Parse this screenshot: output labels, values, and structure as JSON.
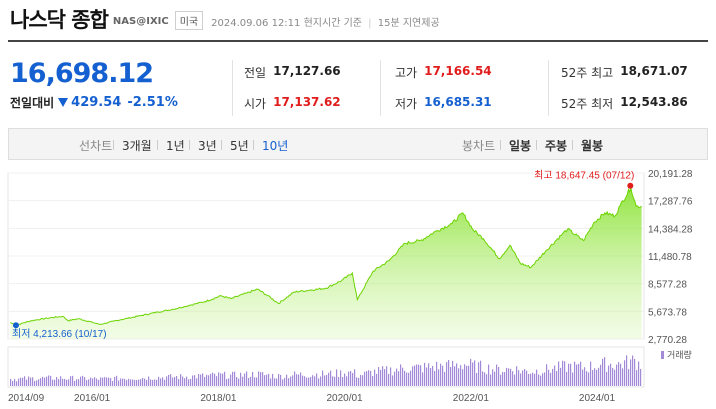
{
  "header": {
    "title": "나스닥 종합",
    "code": "NAS@IXIC",
    "market": "미국",
    "datetime": "2024.09.06 12:11",
    "time_note": "현지시간 기준",
    "delay_note": "15분 지연제공"
  },
  "quote": {
    "price": "16,698.12",
    "change_label": "전일대비",
    "change": "429.54",
    "change_pct": "-2.51%",
    "direction": "down"
  },
  "stats": {
    "prev_close": {
      "label": "전일",
      "value": "17,127.66"
    },
    "open": {
      "label": "시가",
      "value": "17,137.62"
    },
    "high": {
      "label": "고가",
      "value": "17,166.54"
    },
    "low": {
      "label": "저가",
      "value": "16,685.31"
    },
    "w52_high": {
      "label": "52주 최고",
      "value": "18,671.07"
    },
    "w52_low": {
      "label": "52주 최저",
      "value": "12,543.86"
    }
  },
  "tabs": {
    "line_chart": "선차트",
    "m3": "3개월",
    "y1": "1년",
    "y3": "3년",
    "y5": "5년",
    "y10": "10년",
    "candle_chart": "봉차트",
    "daily": "일봉",
    "weekly": "주봉",
    "monthly": "월봉",
    "active_period": "10년"
  },
  "colors": {
    "up": "#e01c1c",
    "down": "#1560d0",
    "line": "#6cd400",
    "volume": "#a28ad9"
  },
  "chart_data": {
    "type": "area",
    "period": "10년",
    "x_ticks": [
      "2014/09",
      "2016/01",
      "2018/01",
      "2020/01",
      "2022/01",
      "2024/01"
    ],
    "y_ticks": [
      "20,191.28",
      "17,287.76",
      "14,384.28",
      "11,480.78",
      "8,577.28",
      "5,673.78",
      "2,770.28"
    ],
    "ylim": [
      2770.28,
      20191.28
    ],
    "max_annotation": {
      "label": "최고",
      "value": "18,647.45",
      "date": "07/12",
      "date_value": "2024-07-12"
    },
    "min_annotation": {
      "label": "최저",
      "value": "4,213.66",
      "date": "10/17",
      "date_value": "2014-10-17"
    },
    "volume_label": "거래량",
    "series": [
      {
        "x": [
          "2014-09",
          "2014-10",
          "2015-01",
          "2015-04",
          "2015-07",
          "2015-08",
          "2015-10",
          "2016-02",
          "2016-06",
          "2016-10",
          "2017-01",
          "2017-04",
          "2017-07",
          "2017-10",
          "2018-01",
          "2018-03",
          "2018-06",
          "2018-08",
          "2018-10",
          "2018-12",
          "2019-03",
          "2019-06",
          "2019-09",
          "2019-12",
          "2020-02",
          "2020-03",
          "2020-06",
          "2020-09",
          "2020-12",
          "2021-03",
          "2021-06",
          "2021-09",
          "2021-11",
          "2022-01",
          "2022-03",
          "2022-06",
          "2022-08",
          "2022-10",
          "2022-12",
          "2023-03",
          "2023-06",
          "2023-07",
          "2023-10",
          "2023-12",
          "2024-02",
          "2024-04",
          "2024-05",
          "2024-07",
          "2024-08",
          "2024-09"
        ],
        "y": [
          4500,
          4213.66,
          4700,
          4950,
          5150,
          4700,
          4900,
          4300,
          4800,
          5250,
          5600,
          5900,
          6300,
          6700,
          7300,
          7000,
          7600,
          8000,
          7300,
          6500,
          7700,
          7900,
          8100,
          8900,
          9700,
          6900,
          9900,
          11000,
          12800,
          13100,
          14100,
          14900,
          16000,
          14200,
          13300,
          11200,
          12600,
          10700,
          10300,
          12100,
          13800,
          14300,
          13100,
          15000,
          16000,
          15700,
          16800,
          18647.45,
          16700,
          16698.12
        ]
      }
    ]
  }
}
